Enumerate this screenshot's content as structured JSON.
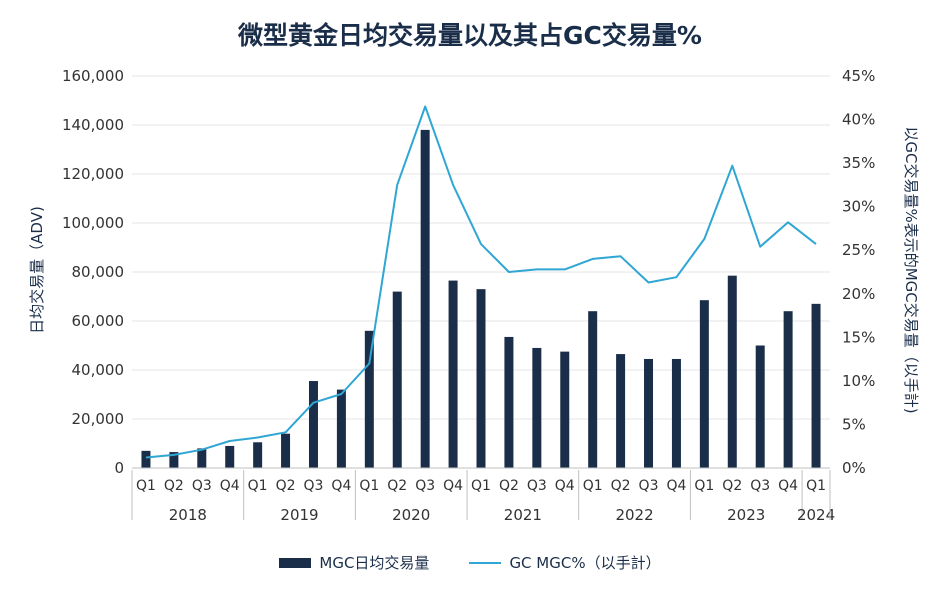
{
  "chart_data": {
    "type": "bar",
    "title": "微型黄金日均交易量以及其占GC交易量%",
    "ylabel": "日均交易量（ADV)",
    "y2label": "以GC交易量%表示的MGC交易量（以手計)",
    "ylim": [
      0,
      160000
    ],
    "y2lim": [
      0,
      45
    ],
    "yticks": [
      "0",
      "20,000",
      "40,000",
      "60,000",
      "80,000",
      "100,000",
      "120,000",
      "140,000",
      "160,000"
    ],
    "y2ticks": [
      "0%",
      "5%",
      "10%",
      "15%",
      "20%",
      "25%",
      "30%",
      "35%",
      "40%",
      "45%"
    ],
    "grid": true,
    "legend_position": "bottom",
    "categories": [
      "Q1",
      "Q2",
      "Q3",
      "Q4",
      "Q1",
      "Q2",
      "Q3",
      "Q4",
      "Q1",
      "Q2",
      "Q3",
      "Q4",
      "Q1",
      "Q2",
      "Q3",
      "Q4",
      "Q1",
      "Q2",
      "Q3",
      "Q4",
      "Q1",
      "Q2",
      "Q3",
      "Q4",
      "Q1"
    ],
    "years": [
      {
        "label": "2018",
        "quarters": 4
      },
      {
        "label": "2019",
        "quarters": 4
      },
      {
        "label": "2020",
        "quarters": 4
      },
      {
        "label": "2021",
        "quarters": 4
      },
      {
        "label": "2022",
        "quarters": 4
      },
      {
        "label": "2023",
        "quarters": 4
      },
      {
        "label": "2024",
        "quarters": 1
      }
    ],
    "series": [
      {
        "name": "MGC日均交易量",
        "type": "bar",
        "axis": "left",
        "color": "#1a2e4a",
        "values": [
          7000,
          6500,
          8000,
          9000,
          10500,
          14000,
          35500,
          32000,
          56000,
          72000,
          138000,
          76500,
          73000,
          53500,
          49000,
          47500,
          64000,
          46500,
          44500,
          44500,
          68500,
          78500,
          50000,
          64000,
          67000
        ]
      },
      {
        "name": "GC MGC%（以手計）",
        "type": "line",
        "axis": "right",
        "color": "#2fa6d3",
        "values": [
          1.2,
          1.5,
          2.1,
          3.1,
          3.5,
          4.1,
          7.5,
          8.5,
          12.0,
          32.5,
          41.5,
          32.5,
          25.7,
          22.5,
          22.8,
          22.8,
          24.0,
          24.3,
          21.3,
          21.9,
          26.3,
          34.7,
          25.4,
          28.2,
          25.7
        ]
      }
    ]
  }
}
